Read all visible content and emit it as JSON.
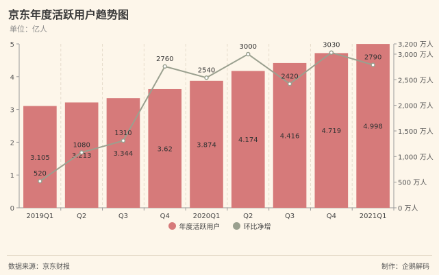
{
  "header": {
    "title": "京东年度活跃用户趋势图",
    "subtitle": "单位：亿人"
  },
  "footer": {
    "source": "数据来源：京东财报",
    "maker": "制作：企鹅解码"
  },
  "colors": {
    "bar": "#d67a7a",
    "line": "#9aa08f",
    "background": "#fdf6ea"
  },
  "chart_data": {
    "type": "bar",
    "categories": [
      "2019Q1",
      "Q2",
      "Q3",
      "Q4",
      "2020Q1",
      "Q2",
      "Q3",
      "Q4",
      "2021Q1"
    ],
    "series": [
      {
        "name": "年度活跃用户",
        "type": "bar",
        "axis": "left",
        "values": [
          3.105,
          3.213,
          3.344,
          3.62,
          3.874,
          4.174,
          4.416,
          4.719,
          4.998
        ]
      },
      {
        "name": "环比净增",
        "type": "line",
        "axis": "right",
        "values": [
          520,
          1080,
          1310,
          2760,
          2540,
          3000,
          2420,
          3030,
          2790
        ]
      }
    ],
    "ylim": [
      0,
      5
    ],
    "y2lim": [
      0,
      3200
    ],
    "yticks": [
      "0",
      "1",
      "2",
      "3",
      "4",
      "5"
    ],
    "y2ticks": [
      "0 万人",
      "500 万人",
      "1,000 万人",
      "1,500 万人",
      "2,000 万人",
      "2,500 万人",
      "3,000 万人",
      "3,200 万人"
    ],
    "legend_position": "bottom-center"
  }
}
